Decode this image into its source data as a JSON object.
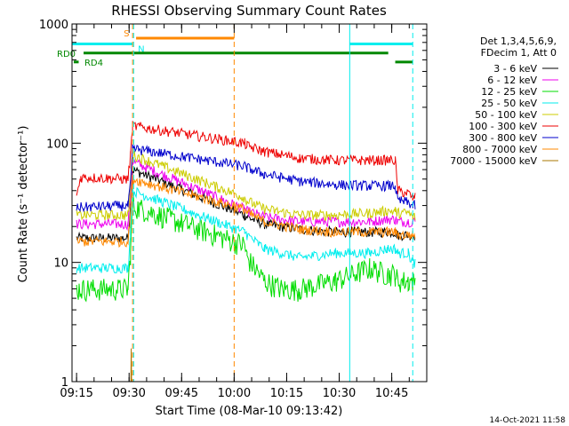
{
  "chart_data": {
    "type": "line",
    "title": "RHESSI Observing Summary Count Rates",
    "xlabel": "Start Time (08-Mar-10 09:13:42)",
    "ylabel": "Count Rate (s⁻¹ detector⁻¹)",
    "yscale": "log",
    "ylim": [
      1,
      1000
    ],
    "xlim_minutes": [
      0,
      101.3
    ],
    "x_ticks": [
      {
        "label": "09:15",
        "m": 1.3
      },
      {
        "label": "09:30",
        "m": 16.3
      },
      {
        "label": "09:45",
        "m": 31.3
      },
      {
        "label": "10:00",
        "m": 46.3
      },
      {
        "label": "10:15",
        "m": 61.3
      },
      {
        "label": "10:30",
        "m": 76.3
      },
      {
        "label": "10:45",
        "m": 91.3
      }
    ],
    "y_ticks": [
      {
        "label": "1",
        "v": 1
      },
      {
        "label": "10",
        "v": 10
      },
      {
        "label": "100",
        "v": 100
      },
      {
        "label": "1000",
        "v": 1000
      }
    ],
    "legend_header": [
      "Det 1,3,4,5,6,9,",
      "FDecim 1, Att 0"
    ],
    "legend_position": "right",
    "series": [
      {
        "name": "3 - 6 keV",
        "color": "#000000",
        "x": [
          1.3,
          16,
          16.7,
          17.3,
          49.3,
          50,
          55,
          65,
          75,
          85,
          90,
          92.3,
          93,
          96,
          97.3,
          98
        ],
        "y": [
          16,
          16,
          30,
          60,
          25,
          24,
          21,
          19,
          18,
          18,
          18,
          18,
          17,
          17,
          17,
          17
        ]
      },
      {
        "name": "6 - 12 keV",
        "color": "#ee00ee",
        "x": [
          1.3,
          16,
          16.7,
          17.3,
          49.3,
          50,
          55,
          65,
          75,
          85,
          90,
          92.3,
          93,
          96,
          97.3,
          98
        ],
        "y": [
          21,
          21,
          38,
          70,
          28,
          27,
          24,
          22,
          22,
          22,
          23,
          23,
          22,
          22,
          22,
          22
        ]
      },
      {
        "name": "12 - 25 keV",
        "color": "#00dd00",
        "x": [
          1.3,
          5,
          16,
          16.7,
          17.3,
          49.3,
          50,
          55,
          60,
          65,
          75,
          85,
          90,
          92.3,
          93,
          96,
          97.3,
          98
        ],
        "y": [
          6,
          6,
          6,
          12,
          30,
          14,
          11,
          7,
          6,
          6,
          7,
          9,
          8,
          8,
          7,
          7,
          7,
          7
        ]
      },
      {
        "name": "25 - 50 keV",
        "color": "#00eeee",
        "x": [
          1.3,
          16,
          16.7,
          17.3,
          49.3,
          50,
          55,
          65,
          75,
          85,
          90,
          92.3,
          93,
          96,
          97.3,
          98
        ],
        "y": [
          9,
          9,
          18,
          40,
          18,
          17,
          13,
          11,
          12,
          12,
          13,
          13,
          12,
          12,
          10,
          10
        ]
      },
      {
        "name": "50 - 100 keV",
        "color": "#cccc00",
        "x": [
          1.3,
          16,
          16.7,
          17.3,
          49.3,
          50,
          55,
          65,
          75,
          85,
          90,
          92.3,
          93,
          96,
          97.3,
          98
        ],
        "y": [
          25,
          25,
          42,
          80,
          35,
          33,
          28,
          25,
          25,
          26,
          27,
          27,
          26,
          26,
          24,
          24
        ]
      },
      {
        "name": "100 - 300 keV",
        "color": "#ee0000",
        "x": [
          1.3,
          2.5,
          16,
          16.7,
          17.3,
          49.3,
          50,
          55,
          65,
          75,
          85,
          90,
          92.3,
          93,
          96,
          97.3,
          98
        ],
        "y": [
          36,
          52,
          50,
          80,
          140,
          100,
          95,
          85,
          75,
          72,
          72,
          72,
          72,
          40,
          38,
          35,
          35
        ]
      },
      {
        "name": "300 - 800 keV",
        "color": "#0000cc",
        "x": [
          1.3,
          16,
          16.7,
          17.3,
          49.3,
          50,
          55,
          65,
          75,
          85,
          90,
          92.3,
          93,
          96,
          97.3,
          98
        ],
        "y": [
          29,
          30,
          45,
          90,
          64,
          62,
          55,
          48,
          45,
          44,
          44,
          44,
          33,
          32,
          30,
          30
        ]
      },
      {
        "name": "800 - 7000 keV",
        "color": "#ff8800",
        "x": [
          1.3,
          16,
          16.7,
          17.3,
          49.3,
          50,
          55,
          65,
          75,
          85,
          90,
          92.3,
          93,
          96,
          97.3,
          98
        ],
        "y": [
          15,
          15,
          26,
          50,
          28,
          26,
          22,
          19,
          18,
          18,
          18,
          18,
          17,
          17,
          17,
          17
        ]
      },
      {
        "name": "7000 - 15000 keV",
        "color": "#aa7700",
        "x": [
          16.8,
          16.9,
          17.0
        ],
        "y": [
          1.0,
          1.9,
          1.0
        ]
      }
    ],
    "state_bars": [
      {
        "label": "S",
        "color": "#ff8800",
        "x": [
          18.3,
          46.3
        ],
        "y": 760
      },
      {
        "label": "N",
        "color": "#00eeee",
        "x": [
          18.3,
          18.3
        ],
        "y": 690
      },
      {
        "label": "RD0",
        "color": "#008800",
        "x": [
          3.3,
          90.3
        ],
        "y": 570
      },
      {
        "label": "RD4",
        "color": "#008800",
        "x": [
          0.5,
          1.9
        ],
        "y": 480
      }
    ],
    "saa_bars": [
      {
        "color": "#00eeee",
        "x": [
          0,
          17.3
        ],
        "y": 680
      },
      {
        "color": "#00eeee",
        "x": [
          79.3,
          97.3
        ],
        "y": 680
      }
    ],
    "night_bar": {
      "color": "#008800",
      "x": [
        92.3,
        97.3
      ],
      "y": 480
    },
    "vlines": [
      {
        "color": "#00eeee",
        "dash": false,
        "x": 0
      },
      {
        "color": "#ff8800",
        "dash": true,
        "x": 17.3
      },
      {
        "color": "#00eeee",
        "dash": true,
        "x": 17.6
      },
      {
        "color": "#ff8800",
        "dash": true,
        "x": 46.3
      },
      {
        "color": "#00eeee",
        "dash": false,
        "x": 79.3
      },
      {
        "color": "#00eeee",
        "dash": true,
        "x": 97.3
      }
    ],
    "footer": "14-Oct-2021 11:58"
  }
}
